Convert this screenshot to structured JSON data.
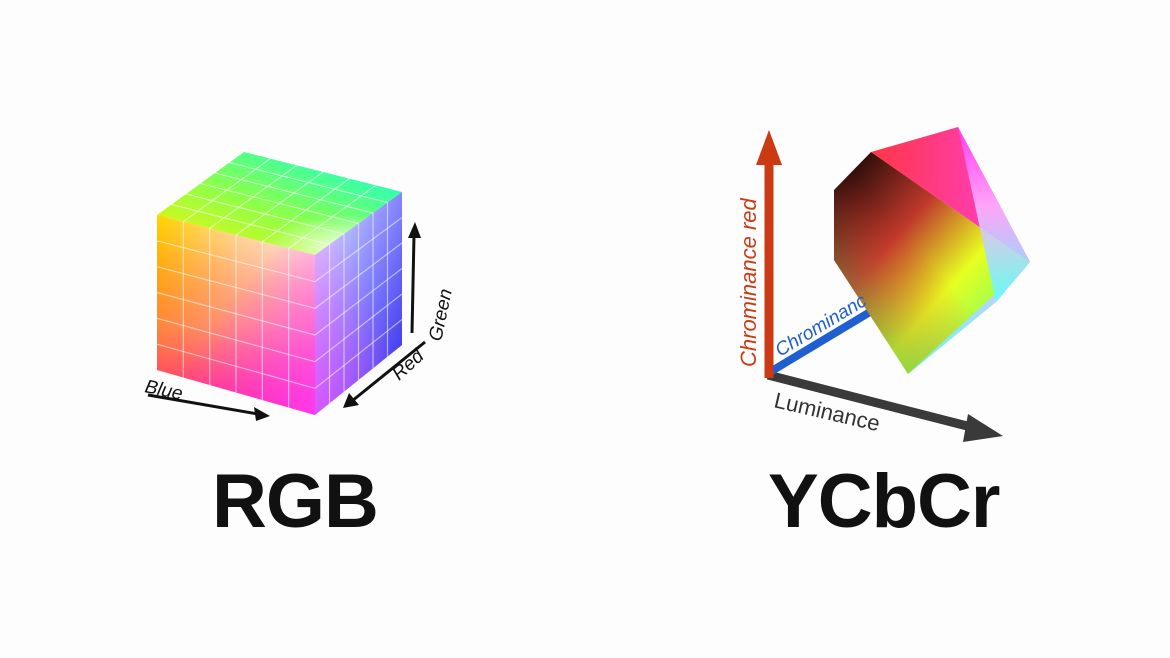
{
  "rgb": {
    "title": "RGB",
    "axis_labels": {
      "blue": "Blue",
      "red": "Red",
      "green": "Green"
    }
  },
  "ycbcr": {
    "title": "YCbCr",
    "axis_labels": {
      "luminance": "Luminance",
      "chrominance_blue": "Chrominanc",
      "chrominance_red": "Chrominance red"
    }
  },
  "colors": {
    "luminance_axis": "#3a3a3a",
    "chrominance_blue_axis": "#1f5fd1",
    "chrominance_red_axis": "#cc3a14",
    "text": "#111111"
  }
}
